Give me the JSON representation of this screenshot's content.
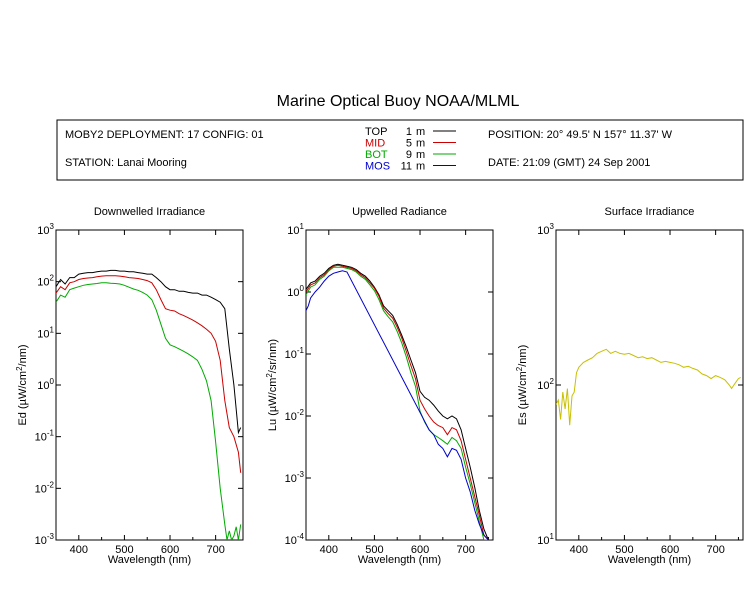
{
  "title": "Marine Optical Buoy NOAA/MLML",
  "info": {
    "deployment": "MOBY2 DEPLOYMENT: 17 CONFIG: 01",
    "station": "STATION: Lanai Mooring",
    "position": "POSITION: 20° 49.5' N   157° 11.37' W",
    "date": "DATE: 21:09 (GMT) 24 Sep 2001",
    "legend": [
      {
        "name": "TOP",
        "depth": "1",
        "unit": "m",
        "color": "#000000"
      },
      {
        "name": "MID",
        "depth": "5",
        "unit": "m",
        "color": "#cc0000"
      },
      {
        "name": "BOT",
        "depth": "9",
        "unit": "m",
        "color": "#00aa00"
      },
      {
        "name": "MOS",
        "depth": "11",
        "unit": "m",
        "color": "#0000cc"
      }
    ]
  },
  "chart_data": [
    {
      "type": "line",
      "title": "Downwelled Irradiance",
      "xlabel": "Wavelength (nm)",
      "ylabel_main": "Ed  (",
      "ylabel_mu": "µ",
      "ylabel_unit": "W/cm",
      "ylabel_sup": "2",
      "ylabel_tail": "/nm)",
      "xlim": [
        350,
        760
      ],
      "ylim_log10": [
        -3,
        3
      ],
      "yscale": "log",
      "x_ticks": [
        400,
        500,
        600,
        700
      ],
      "y_ticks": [
        {
          "value": 1000,
          "base": "10",
          "exp": "3"
        },
        {
          "value": 100,
          "base": "10",
          "exp": "2"
        },
        {
          "value": 10,
          "base": "10",
          "exp": "1"
        },
        {
          "value": 1,
          "base": "10",
          "exp": "0"
        },
        {
          "value": 0.1,
          "base": "10",
          "exp": "-1"
        },
        {
          "value": 0.01,
          "base": "10",
          "exp": "-2"
        },
        {
          "value": 0.001,
          "base": "10",
          "exp": "-3"
        }
      ],
      "series": [
        {
          "name": "TOP",
          "color": "#000000",
          "x": [
            350,
            360,
            370,
            380,
            390,
            400,
            410,
            420,
            430,
            440,
            450,
            460,
            470,
            480,
            490,
            500,
            510,
            520,
            530,
            540,
            550,
            560,
            570,
            580,
            590,
            600,
            610,
            620,
            630,
            640,
            650,
            660,
            670,
            680,
            690,
            700,
            710,
            720,
            730,
            740,
            750,
            755
          ],
          "y": [
            80,
            110,
            90,
            120,
            120,
            140,
            145,
            150,
            150,
            155,
            160,
            160,
            165,
            165,
            160,
            160,
            155,
            155,
            150,
            145,
            140,
            140,
            120,
            100,
            80,
            70,
            70,
            65,
            65,
            62,
            60,
            60,
            55,
            55,
            50,
            45,
            40,
            30,
            5,
            1.0,
            0.12,
            0.15
          ]
        },
        {
          "name": "MID",
          "color": "#cc0000",
          "x": [
            350,
            360,
            370,
            380,
            390,
            400,
            410,
            420,
            430,
            440,
            450,
            460,
            470,
            480,
            490,
            500,
            510,
            520,
            530,
            540,
            550,
            560,
            570,
            580,
            590,
            600,
            610,
            620,
            630,
            640,
            650,
            660,
            670,
            680,
            690,
            700,
            710,
            720,
            730,
            740,
            750,
            755
          ],
          "y": [
            60,
            80,
            70,
            95,
            100,
            110,
            115,
            118,
            120,
            125,
            128,
            130,
            130,
            130,
            128,
            125,
            120,
            118,
            115,
            110,
            105,
            95,
            70,
            45,
            30,
            28,
            27,
            24,
            22,
            20,
            18,
            16,
            14,
            12,
            10,
            7,
            3,
            0.5,
            0.15,
            0.1,
            0.05,
            0.02
          ]
        },
        {
          "name": "BOT",
          "color": "#00aa00",
          "x": [
            350,
            360,
            370,
            380,
            390,
            400,
            410,
            420,
            430,
            440,
            450,
            460,
            470,
            480,
            490,
            500,
            510,
            520,
            530,
            540,
            550,
            560,
            570,
            580,
            590,
            600,
            610,
            620,
            630,
            640,
            650,
            660,
            670,
            680,
            690,
            700,
            710,
            720,
            725,
            730,
            735,
            740,
            745,
            750,
            755
          ],
          "y": [
            40,
            55,
            50,
            70,
            75,
            80,
            85,
            88,
            90,
            92,
            95,
            95,
            93,
            92,
            90,
            85,
            78,
            72,
            68,
            62,
            55,
            45,
            28,
            15,
            8,
            6,
            5.5,
            5,
            4.5,
            4,
            3.5,
            3,
            2,
            1.2,
            0.5,
            0.08,
            0.01,
            0.002,
            0.001,
            0.0015,
            0.001,
            0.0012,
            0.0018,
            0.001,
            0.002
          ]
        }
      ]
    },
    {
      "type": "line",
      "title": "Upwelled Radiance",
      "xlabel": "Wavelength (nm)",
      "ylabel_main": "Lu  (",
      "ylabel_mu": "µ",
      "ylabel_unit": "W/cm",
      "ylabel_sup": "2",
      "ylabel_tail": "/sr/nm)",
      "xlim": [
        350,
        760
      ],
      "ylim_log10": [
        -4,
        1
      ],
      "yscale": "log",
      "x_ticks": [
        400,
        500,
        600,
        700
      ],
      "y_ticks": [
        {
          "value": 10,
          "base": "10",
          "exp": "1"
        },
        {
          "value": 1,
          "base": "10",
          "exp": "0"
        },
        {
          "value": 0.1,
          "base": "10",
          "exp": "-1"
        },
        {
          "value": 0.01,
          "base": "10",
          "exp": "-2"
        },
        {
          "value": 0.001,
          "base": "10",
          "exp": "-3"
        },
        {
          "value": 0.0001,
          "base": "10",
          "exp": "-4"
        }
      ],
      "series": [
        {
          "name": "TOP",
          "color": "#000000",
          "x": [
            350,
            360,
            370,
            380,
            390,
            400,
            410,
            420,
            430,
            440,
            450,
            460,
            470,
            480,
            490,
            500,
            510,
            520,
            530,
            540,
            550,
            560,
            570,
            580,
            590,
            600,
            610,
            620,
            630,
            640,
            650,
            660,
            670,
            680,
            690,
            700,
            710,
            720,
            730,
            740,
            750,
            755
          ],
          "y": [
            1.1,
            1.4,
            1.5,
            1.8,
            2.0,
            2.4,
            2.7,
            2.8,
            2.7,
            2.6,
            2.5,
            2.3,
            2.0,
            1.8,
            1.5,
            1.2,
            0.9,
            0.6,
            0.5,
            0.42,
            0.3,
            0.2,
            0.13,
            0.08,
            0.05,
            0.025,
            0.02,
            0.018,
            0.015,
            0.012,
            0.01,
            0.009,
            0.01,
            0.009,
            0.006,
            0.003,
            0.0015,
            0.0007,
            0.0003,
            0.00015,
            0.0001,
            0.0001
          ]
        },
        {
          "name": "MID",
          "color": "#cc0000",
          "x": [
            350,
            360,
            370,
            380,
            390,
            400,
            410,
            420,
            430,
            440,
            450,
            460,
            470,
            480,
            490,
            500,
            510,
            520,
            530,
            540,
            550,
            560,
            570,
            580,
            590,
            600,
            610,
            620,
            630,
            640,
            650,
            660,
            670,
            680,
            690,
            700,
            710,
            720,
            730,
            740,
            750,
            755
          ],
          "y": [
            1.0,
            1.3,
            1.4,
            1.7,
            1.9,
            2.3,
            2.6,
            2.7,
            2.6,
            2.5,
            2.4,
            2.2,
            1.9,
            1.7,
            1.4,
            1.15,
            0.85,
            0.55,
            0.45,
            0.38,
            0.27,
            0.18,
            0.11,
            0.065,
            0.04,
            0.018,
            0.013,
            0.01,
            0.008,
            0.007,
            0.0065,
            0.005,
            0.0065,
            0.006,
            0.004,
            0.002,
            0.001,
            0.0005,
            0.00025,
            0.00012,
            0.0001,
            0.0001
          ]
        },
        {
          "name": "BOT",
          "color": "#00aa00",
          "x": [
            350,
            360,
            370,
            380,
            390,
            400,
            410,
            420,
            430,
            440,
            450,
            460,
            470,
            480,
            490,
            500,
            510,
            520,
            530,
            540,
            550,
            560,
            570,
            580,
            590,
            600,
            610,
            620,
            630,
            640,
            650,
            660,
            670,
            680,
            690,
            700,
            710,
            720,
            730,
            740,
            750,
            755
          ],
          "y": [
            0.9,
            1.2,
            1.3,
            1.6,
            1.8,
            2.2,
            2.5,
            2.5,
            2.5,
            2.4,
            2.3,
            2.1,
            1.8,
            1.6,
            1.3,
            1.05,
            0.75,
            0.5,
            0.4,
            0.33,
            0.23,
            0.15,
            0.09,
            0.05,
            0.03,
            0.012,
            0.008,
            0.006,
            0.005,
            0.0045,
            0.004,
            0.0035,
            0.0045,
            0.004,
            0.003,
            0.0015,
            0.0008,
            0.0004,
            0.0002,
            0.0001,
            0.0001,
            0.0001
          ]
        },
        {
          "name": "MOS",
          "color": "#0000cc",
          "x": [
            350,
            355,
            360,
            370,
            380,
            390,
            400,
            410,
            420,
            430,
            440,
            620,
            630,
            640,
            650,
            660,
            670,
            680,
            690,
            700,
            710,
            720,
            730,
            740,
            750,
            755
          ],
          "y": [
            0.5,
            0.6,
            0.8,
            1.0,
            1.2,
            1.5,
            1.8,
            2.0,
            2.1,
            2.2,
            2.1,
            0.006,
            0.005,
            0.0035,
            0.003,
            0.0022,
            0.003,
            0.0028,
            0.002,
            0.001,
            0.0006,
            0.0003,
            0.00018,
            0.00012,
            0.0001,
            0.0001
          ]
        }
      ]
    },
    {
      "type": "line",
      "title": "Surface Irradiance",
      "xlabel": "Wavelength (nm)",
      "ylabel_main": "Es  (",
      "ylabel_mu": "µ",
      "ylabel_unit": "W/cm",
      "ylabel_sup": "2",
      "ylabel_tail": "/nm)",
      "xlim": [
        350,
        760
      ],
      "ylim_log10": [
        1,
        3
      ],
      "yscale": "log",
      "x_ticks": [
        400,
        500,
        600,
        700
      ],
      "y_ticks": [
        {
          "value": 1000,
          "base": "10",
          "exp": "3"
        },
        {
          "value": 100,
          "base": "10",
          "exp": "2"
        },
        {
          "value": 10,
          "base": "10",
          "exp": "1"
        }
      ],
      "series": [
        {
          "name": "Es",
          "color": "#c8c000",
          "x": [
            350,
            355,
            360,
            365,
            370,
            375,
            380,
            385,
            390,
            395,
            400,
            410,
            420,
            430,
            440,
            450,
            460,
            470,
            480,
            490,
            500,
            510,
            520,
            530,
            540,
            550,
            560,
            570,
            580,
            590,
            600,
            610,
            620,
            630,
            640,
            650,
            660,
            670,
            680,
            690,
            700,
            710,
            720,
            730,
            735,
            740,
            745,
            750,
            755
          ],
          "y": [
            75,
            80,
            60,
            90,
            70,
            95,
            55,
            85,
            90,
            120,
            130,
            140,
            145,
            150,
            160,
            165,
            170,
            160,
            165,
            160,
            158,
            160,
            155,
            150,
            152,
            148,
            150,
            145,
            140,
            142,
            140,
            138,
            135,
            130,
            132,
            128,
            125,
            118,
            115,
            110,
            115,
            112,
            108,
            100,
            95,
            100,
            105,
            110,
            112
          ]
        }
      ]
    }
  ]
}
